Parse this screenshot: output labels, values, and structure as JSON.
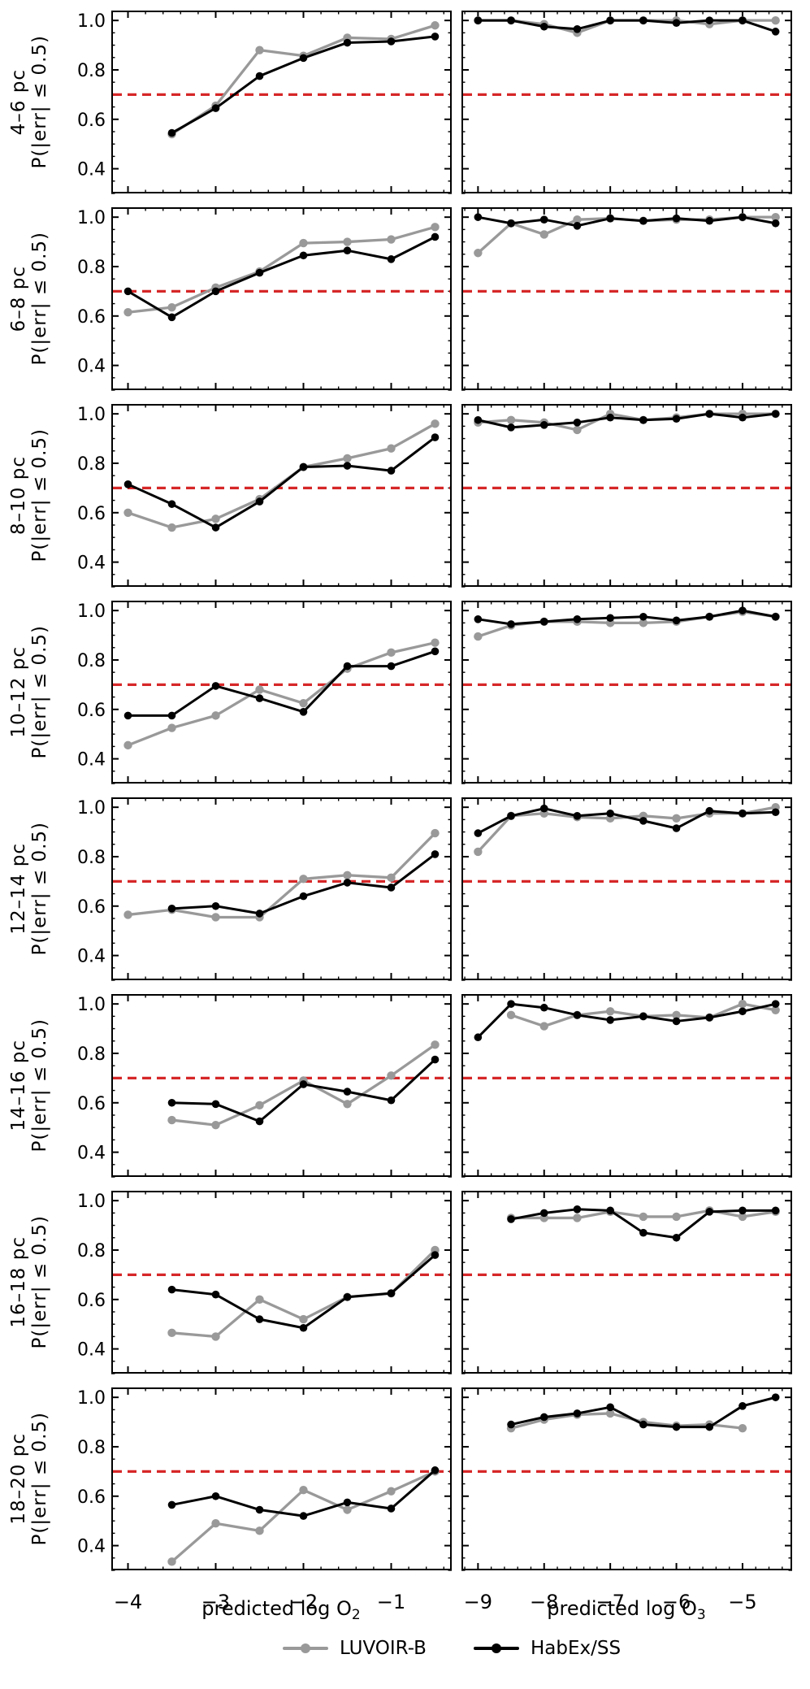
{
  "chart_data": {
    "type": "line",
    "threshold": 0.7,
    "threshold_color": "#d62728",
    "ylim": [
      0.3,
      1.04
    ],
    "yticks": [
      0.4,
      0.6,
      0.8,
      1.0
    ],
    "ytick_labels": [
      "0.4",
      "0.6",
      "0.8",
      "1.0"
    ],
    "y_minor_step": 0.05,
    "ylabel_inner": "P(|err| ≤ 0.5)",
    "grid": false,
    "legend_position": "bottom-center",
    "series_meta": [
      {
        "key": "luvoir",
        "name": "LUVOIR-B",
        "color": "#999999"
      },
      {
        "key": "habex",
        "name": "HabEx/SS",
        "color": "#000000"
      }
    ],
    "panels": {
      "o2": {
        "xlabel_prefix": "predicted log O",
        "xlabel_subscript": "2",
        "xlim": [
          -4.19,
          -0.31
        ],
        "xticks": [
          -4,
          -3,
          -2,
          -1
        ],
        "xtick_labels": [
          "−4",
          "−3",
          "−2",
          "−1"
        ],
        "x_minor_step": 0.2
      },
      "o3": {
        "xlabel_prefix": "predicted log O",
        "xlabel_subscript": "3",
        "xlim": [
          -9.25,
          -4.25
        ],
        "xticks": [
          -9,
          -8,
          -7,
          -6,
          -5
        ],
        "xtick_labels": [
          "−9",
          "−8",
          "−7",
          "−6",
          "−5"
        ],
        "x_minor_step": 0.2
      }
    },
    "rows": [
      {
        "label": "4–6 pc",
        "o2": {
          "luvoir": {
            "x": [
              -3.5,
              -3,
              -2.5,
              -2,
              -1.5,
              -1,
              -0.5
            ],
            "y": [
              0.54,
              0.655,
              0.88,
              0.857,
              0.93,
              0.925,
              0.98
            ]
          },
          "habex": {
            "x": [
              -3.5,
              -3,
              -2.5,
              -2,
              -1.5,
              -1,
              -0.5
            ],
            "y": [
              0.545,
              0.645,
              0.775,
              0.848,
              0.91,
              0.915,
              0.935
            ]
          }
        },
        "o3": {
          "luvoir": {
            "x": [
              -9,
              -8.5,
              -8,
              -7.5,
              -7,
              -6.5,
              -6,
              -5.5,
              -5,
              -4.5
            ],
            "y": [
              1.0,
              1.0,
              0.985,
              0.95,
              1.0,
              1.0,
              1.0,
              0.985,
              1.0,
              1.0
            ]
          },
          "habex": {
            "x": [
              -9,
              -8.5,
              -8,
              -7.5,
              -7,
              -6.5,
              -6,
              -5.5,
              -5,
              -4.5
            ],
            "y": [
              1.0,
              1.0,
              0.975,
              0.965,
              1.0,
              1.0,
              0.99,
              1.0,
              1.0,
              0.955
            ]
          }
        }
      },
      {
        "label": "6–8 pc",
        "o2": {
          "luvoir": {
            "x": [
              -4,
              -3.5,
              -3,
              -2.5,
              -2,
              -1.5,
              -1,
              -0.5
            ],
            "y": [
              0.615,
              0.635,
              0.715,
              0.78,
              0.895,
              0.9,
              0.91,
              0.96
            ]
          },
          "habex": {
            "x": [
              -4,
              -3.5,
              -3,
              -2.5,
              -2,
              -1.5,
              -1,
              -0.5
            ],
            "y": [
              0.7,
              0.595,
              0.7,
              0.775,
              0.845,
              0.865,
              0.83,
              0.92
            ]
          }
        },
        "o3": {
          "luvoir": {
            "x": [
              -9,
              -8.5,
              -8,
              -7.5,
              -7,
              -6.5,
              -6,
              -5.5,
              -5,
              -4.5
            ],
            "y": [
              0.855,
              0.975,
              0.93,
              0.99,
              0.995,
              0.985,
              0.99,
              0.99,
              1.0,
              1.0
            ]
          },
          "habex": {
            "x": [
              -9,
              -8.5,
              -8,
              -7.5,
              -7,
              -6.5,
              -6,
              -5.5,
              -5,
              -4.5
            ],
            "y": [
              1.0,
              0.975,
              0.99,
              0.965,
              0.995,
              0.985,
              0.995,
              0.985,
              1.0,
              0.975
            ]
          }
        }
      },
      {
        "label": "8–10 pc",
        "o2": {
          "luvoir": {
            "x": [
              -4,
              -3.5,
              -3,
              -2.5,
              -2,
              -1.5,
              -1,
              -0.5
            ],
            "y": [
              0.6,
              0.54,
              0.575,
              0.655,
              0.785,
              0.82,
              0.86,
              0.96
            ]
          },
          "habex": {
            "x": [
              -4,
              -3.5,
              -3,
              -2.5,
              -2,
              -1.5,
              -1,
              -0.5
            ],
            "y": [
              0.715,
              0.635,
              0.54,
              0.645,
              0.785,
              0.79,
              0.77,
              0.905
            ]
          }
        },
        "o3": {
          "luvoir": {
            "x": [
              -9,
              -8.5,
              -8,
              -7.5,
              -7,
              -6.5,
              -6,
              -5.5,
              -5,
              -4.5
            ],
            "y": [
              0.965,
              0.975,
              0.965,
              0.935,
              1.0,
              0.975,
              0.985,
              1.0,
              1.0,
              1.0
            ]
          },
          "habex": {
            "x": [
              -9,
              -8.5,
              -8,
              -7.5,
              -7,
              -6.5,
              -6,
              -5.5,
              -5,
              -4.5
            ],
            "y": [
              0.975,
              0.945,
              0.955,
              0.965,
              0.985,
              0.975,
              0.98,
              1.0,
              0.985,
              1.0
            ]
          }
        }
      },
      {
        "label": "10–12 pc",
        "o2": {
          "luvoir": {
            "x": [
              -4,
              -3.5,
              -3,
              -2.5,
              -2,
              -1.5,
              -1,
              -0.5
            ],
            "y": [
              0.455,
              0.525,
              0.575,
              0.68,
              0.625,
              0.765,
              0.83,
              0.87
            ]
          },
          "habex": {
            "x": [
              -4,
              -3.5,
              -3,
              -2.5,
              -2,
              -1.5,
              -1,
              -0.5
            ],
            "y": [
              0.575,
              0.575,
              0.695,
              0.645,
              0.59,
              0.775,
              0.775,
              0.835
            ]
          }
        },
        "o3": {
          "luvoir": {
            "x": [
              -9,
              -8.5,
              -8,
              -7.5,
              -7,
              -6.5,
              -6,
              -5.5,
              -5,
              -4.5
            ],
            "y": [
              0.895,
              0.94,
              0.955,
              0.955,
              0.95,
              0.95,
              0.955,
              0.975,
              0.995,
              0.975
            ]
          },
          "habex": {
            "x": [
              -9,
              -8.5,
              -8,
              -7.5,
              -7,
              -6.5,
              -6,
              -5.5,
              -5,
              -4.5
            ],
            "y": [
              0.965,
              0.945,
              0.955,
              0.965,
              0.97,
              0.975,
              0.96,
              0.975,
              1.0,
              0.975
            ]
          }
        }
      },
      {
        "label": "12–14 pc",
        "o2": {
          "luvoir": {
            "x": [
              -4,
              -3.5,
              -3,
              -2.5,
              -2,
              -1.5,
              -1,
              -0.5
            ],
            "y": [
              0.565,
              0.585,
              0.555,
              0.555,
              0.71,
              0.725,
              0.715,
              0.895
            ]
          },
          "habex": {
            "x": [
              -3.5,
              -3,
              -2.5,
              -2,
              -1.5,
              -1,
              -0.5
            ],
            "y": [
              0.59,
              0.6,
              0.57,
              0.64,
              0.695,
              0.675,
              0.81
            ]
          }
        },
        "o3": {
          "luvoir": {
            "x": [
              -9,
              -8.5,
              -8,
              -7.5,
              -7,
              -6.5,
              -6,
              -5.5,
              -5,
              -4.5
            ],
            "y": [
              0.82,
              0.965,
              0.975,
              0.96,
              0.955,
              0.965,
              0.955,
              0.975,
              0.975,
              1.0
            ]
          },
          "habex": {
            "x": [
              -9,
              -8.5,
              -8,
              -7.5,
              -7,
              -6.5,
              -6,
              -5.5,
              -5,
              -4.5
            ],
            "y": [
              0.895,
              0.965,
              0.995,
              0.965,
              0.975,
              0.945,
              0.915,
              0.985,
              0.975,
              0.98
            ]
          }
        }
      },
      {
        "label": "14–16 pc",
        "o2": {
          "luvoir": {
            "x": [
              -3.5,
              -3,
              -2.5,
              -2,
              -1.5,
              -1,
              -0.5
            ],
            "y": [
              0.53,
              0.51,
              0.59,
              0.69,
              0.595,
              0.71,
              0.835
            ]
          },
          "habex": {
            "x": [
              -3.5,
              -3,
              -2.5,
              -2,
              -1.5,
              -1,
              -0.5
            ],
            "y": [
              0.6,
              0.595,
              0.525,
              0.675,
              0.645,
              0.61,
              0.775
            ]
          }
        },
        "o3": {
          "luvoir": {
            "x": [
              -8.5,
              -8,
              -7.5,
              -7,
              -6.5,
              -6,
              -5.5,
              -5,
              -4.5
            ],
            "y": [
              0.955,
              0.91,
              0.955,
              0.97,
              0.95,
              0.955,
              0.945,
              1.0,
              0.975
            ]
          },
          "habex": {
            "x": [
              -9,
              -8.5,
              -8,
              -7.5,
              -7,
              -6.5,
              -6,
              -5.5,
              -5,
              -4.5
            ],
            "y": [
              0.865,
              1.0,
              0.985,
              0.955,
              0.935,
              0.95,
              0.93,
              0.945,
              0.97,
              1.0
            ]
          }
        }
      },
      {
        "label": "16–18 pc",
        "o2": {
          "luvoir": {
            "x": [
              -3.5,
              -3,
              -2.5,
              -2,
              -1.5,
              -1,
              -0.5
            ],
            "y": [
              0.465,
              0.45,
              0.6,
              0.52,
              0.61,
              0.625,
              0.8
            ]
          },
          "habex": {
            "x": [
              -3.5,
              -3,
              -2.5,
              -2,
              -1.5,
              -1,
              -0.5
            ],
            "y": [
              0.64,
              0.62,
              0.52,
              0.485,
              0.61,
              0.625,
              0.78
            ]
          }
        },
        "o3": {
          "luvoir": {
            "x": [
              -8.5,
              -8,
              -7.5,
              -7,
              -6.5,
              -6,
              -5.5,
              -5,
              -4.5
            ],
            "y": [
              0.93,
              0.93,
              0.93,
              0.955,
              0.935,
              0.935,
              0.96,
              0.935,
              0.955
            ]
          },
          "habex": {
            "x": [
              -8.5,
              -8,
              -7.5,
              -7,
              -6.5,
              -6,
              -5.5,
              -5,
              -4.5
            ],
            "y": [
              0.925,
              0.95,
              0.965,
              0.96,
              0.87,
              0.85,
              0.955,
              0.96,
              0.96
            ]
          }
        }
      },
      {
        "label": "18–20 pc",
        "o2": {
          "luvoir": {
            "x": [
              -3.5,
              -3,
              -2.5,
              -2,
              -1.5,
              -1,
              -0.5
            ],
            "y": [
              0.335,
              0.49,
              0.46,
              0.625,
              0.545,
              0.62,
              0.7
            ]
          },
          "habex": {
            "x": [
              -3.5,
              -3,
              -2.5,
              -2,
              -1.5,
              -1,
              -0.5
            ],
            "y": [
              0.565,
              0.6,
              0.545,
              0.52,
              0.575,
              0.55,
              0.705
            ]
          }
        },
        "o3": {
          "luvoir": {
            "x": [
              -8.5,
              -8,
              -7.5,
              -7,
              -6.5,
              -6,
              -5.5,
              -5
            ],
            "y": [
              0.875,
              0.91,
              0.93,
              0.935,
              0.9,
              0.885,
              0.89,
              0.875
            ]
          },
          "habex": {
            "x": [
              -8.5,
              -8,
              -7.5,
              -7,
              -6.5,
              -6,
              -5.5,
              -5,
              -4.5
            ],
            "y": [
              0.89,
              0.92,
              0.935,
              0.96,
              0.89,
              0.88,
              0.88,
              0.965,
              1.0
            ]
          }
        }
      }
    ]
  }
}
